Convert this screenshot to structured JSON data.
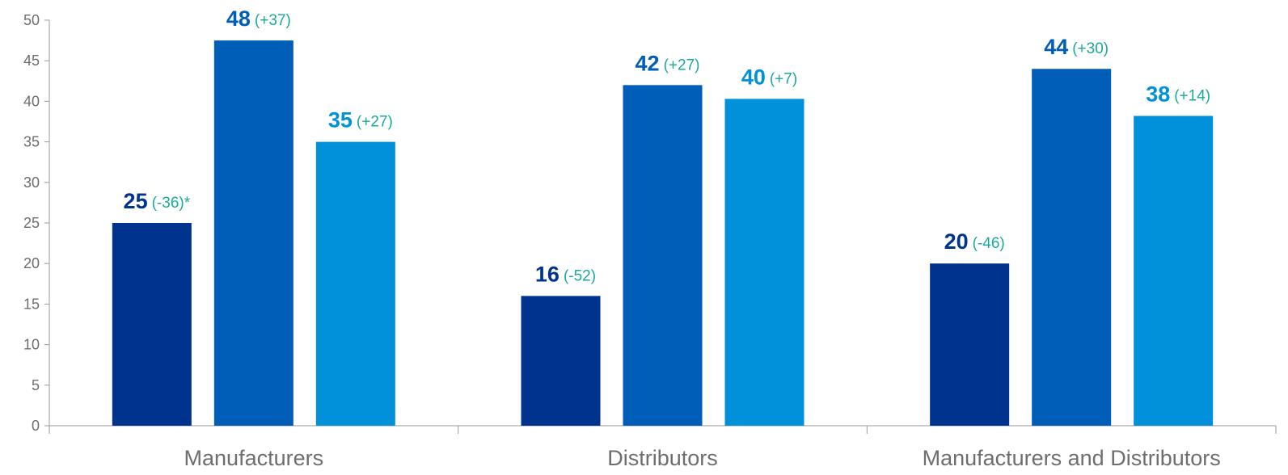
{
  "chart_data": {
    "type": "bar",
    "title": "",
    "xlabel": "",
    "ylabel": "",
    "ylim": [
      0,
      50
    ],
    "yticks": [
      0,
      5,
      10,
      15,
      20,
      25,
      30,
      35,
      40,
      45,
      50
    ],
    "grid": false,
    "categories": [
      "Manufacturers",
      "Distributors",
      "Manufacturers and Distributors"
    ],
    "series": [
      {
        "color": "#00338d",
        "values": [
          25,
          16,
          20
        ],
        "value_labels": [
          "25",
          "16",
          "20"
        ],
        "change_labels": [
          "(-36)*",
          "(-52)",
          "(-46)"
        ]
      },
      {
        "color": "#005eb8",
        "values": [
          47.5,
          42,
          44
        ],
        "value_labels": [
          "48",
          "42",
          "44"
        ],
        "change_labels": [
          "(+37)",
          "(+27)",
          "(+30)"
        ]
      },
      {
        "color": "#0091da",
        "values": [
          35,
          40.3,
          38.2
        ],
        "value_labels": [
          "35",
          "40",
          "38"
        ],
        "change_labels": [
          "(+27)",
          "(+7)",
          "(+14)"
        ]
      }
    ],
    "change_color": "#1aa99a"
  }
}
